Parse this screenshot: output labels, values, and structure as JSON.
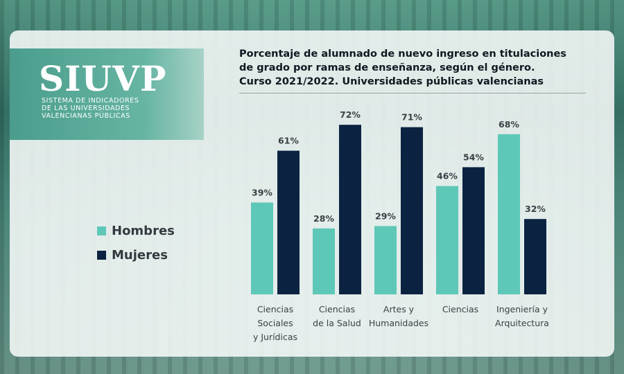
{
  "brand": {
    "name": "SIUVP",
    "subtitle_lines": [
      "SISTEMA DE INDICADORES",
      "DE LAS UNIVERSIDADES",
      "VALENCIANAS PÚBLICAS"
    ]
  },
  "colors": {
    "hombres": "#5ec8b8",
    "mujeres": "#0b2340",
    "label_text": "#3a3f45"
  },
  "chart_data": {
    "type": "bar",
    "title_lines": [
      "Porcentaje de alumnado de nuevo ingreso en titulaciones",
      "de grado por ramas de enseñanza, según el género.",
      "Curso 2021/2022. Universidades públicas valencianas"
    ],
    "categories": [
      [
        "Ciencias",
        "Sociales",
        "y Jurídicas"
      ],
      [
        "Ciencias",
        "de la Salud"
      ],
      [
        "Artes y",
        "Humanidades"
      ],
      [
        "Ciencias"
      ],
      [
        "Ingeniería y",
        "Arquitectura"
      ]
    ],
    "series": [
      {
        "name": "Hombres",
        "values": [
          39,
          28,
          29,
          46,
          68
        ],
        "labels": [
          "39%",
          "28%",
          "29%",
          "46%",
          "68%"
        ]
      },
      {
        "name": "Mujeres",
        "values": [
          61,
          72,
          71,
          54,
          32
        ],
        "labels": [
          "61%",
          "72%",
          "71%",
          "54%",
          "32%"
        ]
      }
    ],
    "ylim": [
      0,
      100
    ],
    "grid": false,
    "legend_position": "left"
  }
}
